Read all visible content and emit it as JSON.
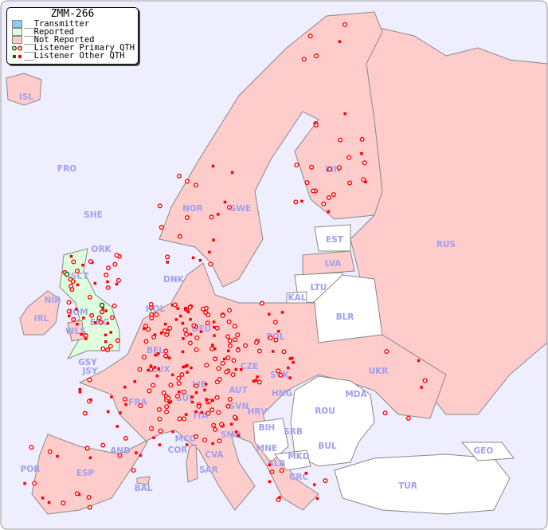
{
  "title": "ZMM-266",
  "legend": [
    {
      "label": "__Transmitter",
      "color": "#88ccff"
    },
    {
      "label": "__Reported",
      "color": "#ddffdd"
    },
    {
      "label": "__Not Reported",
      "color": "#ffcccc"
    },
    {
      "label": "__Listener Primary QTH",
      "marker": "ring"
    },
    {
      "label": "__Listener Other QTH",
      "marker": "square"
    }
  ],
  "colors": {
    "sea": "#eeeeff",
    "not_reported": "#ffcccc",
    "reported": "#ddffdd",
    "no_data": "#ffffff",
    "marker": "#ff0000",
    "marker_alt": "#006600",
    "label": "#a0a0ee"
  },
  "countries": [
    "ISL",
    "FRO",
    "SHE",
    "ORK",
    "NOR",
    "SWE",
    "FIN",
    "EST",
    "RUS",
    "LVA",
    "DNK",
    "LTU",
    "KAL",
    "BLR",
    "SCT",
    "NIR",
    "IOM",
    "ENG",
    "WLS",
    "IRL",
    "HOL",
    "DEU",
    "POL",
    "BEL",
    "LUX",
    "CZE",
    "SVK",
    "UKR",
    "GSY",
    "JSY",
    "FRA",
    "SUI",
    "LIE",
    "AUT",
    "HNG",
    "MDA",
    "SVN",
    "HRV",
    "ROU",
    "ITA",
    "BIH",
    "SRB",
    "SMR",
    "MCO",
    "COR",
    "CVA",
    "MNE",
    "BUL",
    "GEO",
    "AND",
    "ALB",
    "MKD",
    "POR",
    "ESP",
    "SAR",
    "BAL",
    "GRC",
    "TUR"
  ]
}
